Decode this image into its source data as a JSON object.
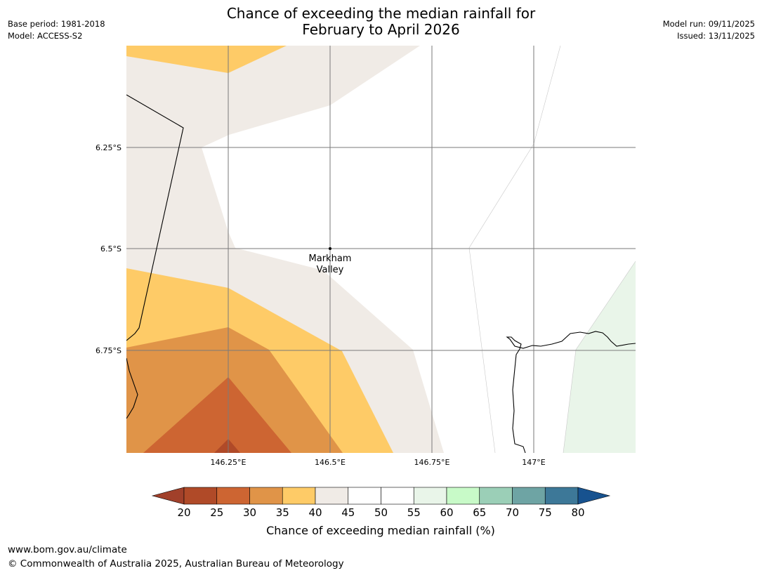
{
  "header": {
    "title_line1": "Chance of exceeding the median rainfall for",
    "title_line2": "February to April 2026",
    "base_period": "Base period: 1981-2018",
    "model": "Model: ACCESS-S2",
    "model_run": "Model run: 09/11/2025",
    "issued": "Issued: 13/11/2025"
  },
  "map": {
    "lat_labels": [
      "6.25°S",
      "6.5°S",
      "6.75°S"
    ],
    "lon_labels": [
      "146.25°E",
      "146.5°E",
      "146.75°E",
      "147°E"
    ],
    "place_line1": "Markham",
    "place_line2": "Valley"
  },
  "colorbar": {
    "label": "Chance of exceeding median rainfall (%)",
    "ticks": [
      "20",
      "25",
      "30",
      "35",
      "40",
      "45",
      "50",
      "55",
      "60",
      "65",
      "70",
      "75",
      "80"
    ],
    "colors": {
      "below": "#a1402a",
      "bins": [
        "#b04a28",
        "#cd6532",
        "#e09448",
        "#fecb67",
        "#f0ebe6",
        "#ffffff",
        "#ffffff",
        "#e9f5e9",
        "#c8fac8",
        "#9bcfb7",
        "#6ea4a4",
        "#3d7898"
      ],
      "above": "#17528f"
    }
  },
  "footer": {
    "url": "www.bom.gov.au/climate",
    "copyright": "© Commonwealth of Australia 2025, Australian Bureau of Meteorology"
  }
}
